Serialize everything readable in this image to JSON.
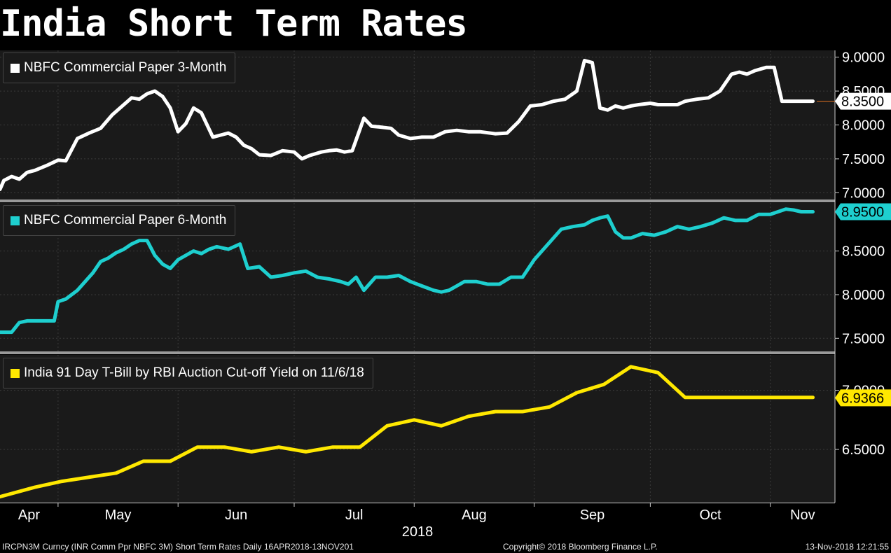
{
  "title": "India Short Term Rates",
  "footer": {
    "left": "IRCPN3M Curncy (INR Comm Ppr NBFC 3M) Short Term Rates  Daily 16APR2018-13NOV201",
    "center": "Copyright© 2018 Bloomberg Finance L.P.",
    "right": "13-Nov-2018 12:21:55"
  },
  "colors": {
    "background": "#000000",
    "panel": "#1a1a1a",
    "separator": "#9a9a9a",
    "series1": "#ffffff",
    "series2": "#1ecfcf",
    "series3": "#ffe800",
    "last_marker_line": "#e07020"
  },
  "chart_data": {
    "type": "line",
    "x_axis": {
      "start": "2018-04-16",
      "end": "2018-11-13",
      "months": [
        {
          "label": "Apr",
          "date": "2018-04-01"
        },
        {
          "label": "May",
          "date": "2018-05-01"
        },
        {
          "label": "Jun",
          "date": "2018-06-01"
        },
        {
          "label": "Jul",
          "date": "2018-07-01"
        },
        {
          "label": "Aug",
          "date": "2018-08-01"
        },
        {
          "label": "Sep",
          "date": "2018-09-01"
        },
        {
          "label": "Oct",
          "date": "2018-10-01"
        },
        {
          "label": "Nov",
          "date": "2018-11-01"
        }
      ],
      "year_label": "2018"
    },
    "panels": [
      {
        "legend": "NBFC Commercial Paper 3-Month",
        "color": "#ffffff",
        "ylim": [
          6.9,
          9.1
        ],
        "yticks": [
          "9.0000",
          "8.5000",
          "8.0000",
          "7.5000",
          "7.0000"
        ],
        "last_value": "8.3500",
        "series": {
          "name": "NBFC Commercial Paper 3-Month",
          "x": [
            "2018-04-16",
            "2018-04-17",
            "2018-04-19",
            "2018-04-21",
            "2018-04-23",
            "2018-04-25",
            "2018-04-28",
            "2018-05-01",
            "2018-05-03",
            "2018-05-06",
            "2018-05-09",
            "2018-05-12",
            "2018-05-15",
            "2018-05-18",
            "2018-05-20",
            "2018-05-22",
            "2018-05-24",
            "2018-05-26",
            "2018-05-28",
            "2018-05-30",
            "2018-06-01",
            "2018-06-03",
            "2018-06-05",
            "2018-06-07",
            "2018-06-10",
            "2018-06-12",
            "2018-06-14",
            "2018-06-16",
            "2018-06-18",
            "2018-06-20",
            "2018-06-22",
            "2018-06-25",
            "2018-06-28",
            "2018-07-01",
            "2018-07-03",
            "2018-07-05",
            "2018-07-08",
            "2018-07-10",
            "2018-07-12",
            "2018-07-14",
            "2018-07-16",
            "2018-07-19",
            "2018-07-21",
            "2018-07-23",
            "2018-07-26",
            "2018-07-28",
            "2018-07-31",
            "2018-08-03",
            "2018-08-06",
            "2018-08-09",
            "2018-08-12",
            "2018-08-15",
            "2018-08-18",
            "2018-08-22",
            "2018-08-25",
            "2018-08-28",
            "2018-08-31",
            "2018-09-03",
            "2018-09-06",
            "2018-09-09",
            "2018-09-12",
            "2018-09-14",
            "2018-09-16",
            "2018-09-18",
            "2018-09-20",
            "2018-09-22",
            "2018-09-24",
            "2018-09-26",
            "2018-09-28",
            "2018-10-01",
            "2018-10-03",
            "2018-10-05",
            "2018-10-08",
            "2018-10-10",
            "2018-10-13",
            "2018-10-16",
            "2018-10-19",
            "2018-10-22",
            "2018-10-24",
            "2018-10-26",
            "2018-10-28",
            "2018-10-31",
            "2018-11-02",
            "2018-11-04",
            "2018-11-06",
            "2018-11-08",
            "2018-11-09",
            "2018-11-10",
            "2018-11-12"
          ],
          "values": [
            7.05,
            7.18,
            7.24,
            7.2,
            7.3,
            7.33,
            7.4,
            7.48,
            7.47,
            7.8,
            7.88,
            7.95,
            8.15,
            8.3,
            8.4,
            8.38,
            8.46,
            8.5,
            8.42,
            8.25,
            7.9,
            8.02,
            8.25,
            8.18,
            7.82,
            7.85,
            7.88,
            7.82,
            7.7,
            7.65,
            7.56,
            7.55,
            7.62,
            7.6,
            7.5,
            7.55,
            7.6,
            7.62,
            7.63,
            7.6,
            7.62,
            8.1,
            7.98,
            7.97,
            7.95,
            7.85,
            7.8,
            7.82,
            7.82,
            7.9,
            7.92,
            7.9,
            7.9,
            7.87,
            7.88,
            8.05,
            8.28,
            8.3,
            8.35,
            8.38,
            8.5,
            8.95,
            8.92,
            8.25,
            8.22,
            8.28,
            8.25,
            8.28,
            8.3,
            8.32,
            8.3,
            8.3,
            8.3,
            8.35,
            8.38,
            8.4,
            8.5,
            8.75,
            8.78,
            8.75,
            8.8,
            8.85,
            8.85,
            8.35,
            8.35,
            8.35,
            8.35,
            8.35,
            8.35
          ]
        }
      },
      {
        "legend": "NBFC Commercial Paper 6-Month",
        "color": "#1ecfcf",
        "ylim": [
          7.35,
          9.05
        ],
        "yticks": [
          "8.5000",
          "8.0000",
          "7.5000"
        ],
        "last_value": "8.9500",
        "series": {
          "name": "NBFC Commercial Paper 6-Month",
          "x": [
            "2018-04-16",
            "2018-04-19",
            "2018-04-21",
            "2018-04-23",
            "2018-04-25",
            "2018-04-28",
            "2018-04-30",
            "2018-05-01",
            "2018-05-03",
            "2018-05-06",
            "2018-05-08",
            "2018-05-10",
            "2018-05-12",
            "2018-05-14",
            "2018-05-16",
            "2018-05-18",
            "2018-05-20",
            "2018-05-22",
            "2018-05-24",
            "2018-05-26",
            "2018-05-28",
            "2018-05-30",
            "2018-06-01",
            "2018-06-03",
            "2018-06-05",
            "2018-06-07",
            "2018-06-09",
            "2018-06-11",
            "2018-06-14",
            "2018-06-17",
            "2018-06-19",
            "2018-06-22",
            "2018-06-25",
            "2018-06-28",
            "2018-07-01",
            "2018-07-04",
            "2018-07-07",
            "2018-07-10",
            "2018-07-13",
            "2018-07-15",
            "2018-07-17",
            "2018-07-19",
            "2018-07-22",
            "2018-07-25",
            "2018-07-28",
            "2018-07-31",
            "2018-08-03",
            "2018-08-06",
            "2018-08-08",
            "2018-08-10",
            "2018-08-12",
            "2018-08-14",
            "2018-08-17",
            "2018-08-20",
            "2018-08-23",
            "2018-08-26",
            "2018-08-29",
            "2018-09-01",
            "2018-09-03",
            "2018-09-05",
            "2018-09-08",
            "2018-09-11",
            "2018-09-14",
            "2018-09-16",
            "2018-09-18",
            "2018-09-20",
            "2018-09-22",
            "2018-09-24",
            "2018-09-26",
            "2018-09-29",
            "2018-10-02",
            "2018-10-05",
            "2018-10-08",
            "2018-10-11",
            "2018-10-14",
            "2018-10-17",
            "2018-10-20",
            "2018-10-23",
            "2018-10-26",
            "2018-10-29",
            "2018-11-01",
            "2018-11-03",
            "2018-11-05",
            "2018-11-07",
            "2018-11-09",
            "2018-11-11",
            "2018-11-12"
          ],
          "values": [
            7.57,
            7.57,
            7.68,
            7.7,
            7.7,
            7.7,
            7.7,
            7.92,
            7.95,
            8.05,
            8.15,
            8.25,
            8.38,
            8.42,
            8.48,
            8.52,
            8.58,
            8.62,
            8.62,
            8.45,
            8.35,
            8.3,
            8.4,
            8.45,
            8.5,
            8.47,
            8.52,
            8.55,
            8.52,
            8.58,
            8.3,
            8.32,
            8.2,
            8.22,
            8.25,
            8.27,
            8.2,
            8.18,
            8.15,
            8.12,
            8.2,
            8.05,
            8.2,
            8.2,
            8.22,
            8.15,
            8.1,
            8.05,
            8.03,
            8.05,
            8.1,
            8.15,
            8.15,
            8.12,
            8.12,
            8.2,
            8.2,
            8.4,
            8.5,
            8.6,
            8.75,
            8.78,
            8.8,
            8.85,
            8.88,
            8.9,
            8.72,
            8.65,
            8.65,
            8.7,
            8.68,
            8.72,
            8.78,
            8.75,
            8.78,
            8.82,
            8.88,
            8.85,
            8.85,
            8.92,
            8.92,
            8.95,
            8.98,
            8.97,
            8.95,
            8.95,
            8.95
          ]
        }
      },
      {
        "legend": "India 91 Day T-Bill by RBI Auction Cut-off Yield on 11/6/18",
        "color": "#ffe800",
        "ylim": [
          6.05,
          7.3
        ],
        "yticks": [
          "7.0000",
          "6.5000"
        ],
        "last_value": "6.9366",
        "series": {
          "name": "India 91 Day T-Bill by RBI Auction Cut-off Yield on 11/6/18",
          "x": [
            "2018-04-16",
            "2018-04-25",
            "2018-05-02",
            "2018-05-16",
            "2018-05-23",
            "2018-05-30",
            "2018-06-06",
            "2018-06-13",
            "2018-06-20",
            "2018-06-27",
            "2018-07-04",
            "2018-07-11",
            "2018-07-18",
            "2018-07-25",
            "2018-08-01",
            "2018-08-08",
            "2018-08-15",
            "2018-08-22",
            "2018-08-29",
            "2018-09-05",
            "2018-09-12",
            "2018-09-19",
            "2018-09-26",
            "2018-10-03",
            "2018-10-10",
            "2018-10-17",
            "2018-10-24",
            "2018-10-31",
            "2018-11-07",
            "2018-11-12"
          ],
          "values": [
            6.1,
            6.18,
            6.23,
            6.3,
            6.4,
            6.4,
            6.52,
            6.52,
            6.48,
            6.52,
            6.48,
            6.52,
            6.52,
            6.7,
            6.75,
            6.7,
            6.78,
            6.82,
            6.82,
            6.86,
            6.98,
            7.05,
            7.2,
            7.15,
            6.94,
            6.94,
            6.94,
            6.94,
            6.94,
            6.94
          ]
        }
      }
    ]
  }
}
